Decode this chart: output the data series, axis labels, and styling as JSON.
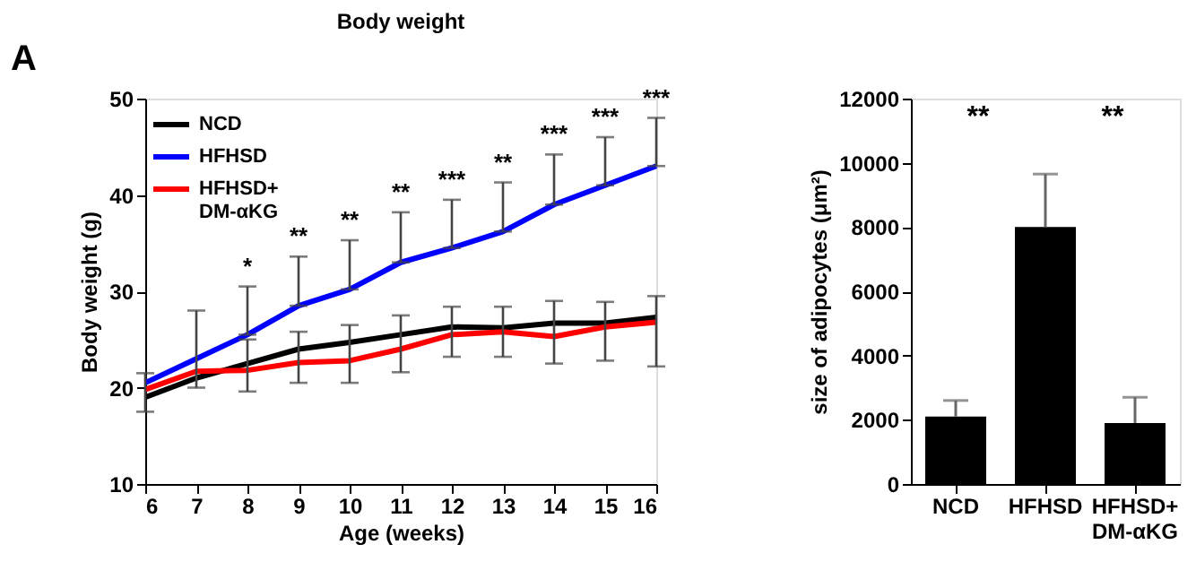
{
  "chart_data": [
    {
      "type": "line",
      "title": "Body weight",
      "xlabel": "Age (weeks)",
      "ylabel": "Body weight (g)",
      "x": [
        6,
        7,
        8,
        9,
        10,
        11,
        12,
        13,
        14,
        15,
        16
      ],
      "xlim": [
        6,
        16
      ],
      "xticks": [
        6,
        7,
        8,
        9,
        10,
        11,
        12,
        13,
        14,
        15,
        16
      ],
      "ylim": [
        10,
        50
      ],
      "yticks": [
        10,
        20,
        30,
        40,
        50
      ],
      "legend": "top left",
      "grid": false,
      "series": [
        {
          "name": "NCD",
          "color": "#000000",
          "values": [
            19,
            21,
            22.5,
            24,
            24.7,
            25.5,
            26.3,
            26.2,
            26.7,
            26.7,
            27.3
          ],
          "errors": [
            [
              17.5,
              21.5
            ],
            [
              20,
              28
            ],
            [
              19.6,
              25
            ],
            [
              20.5,
              25.8
            ],
            [
              20.5,
              26.5
            ],
            [
              21.6,
              27.5
            ],
            [
              23.2,
              28.4
            ],
            [
              23.2,
              28.4
            ],
            [
              22.5,
              29
            ],
            [
              22.8,
              28.9
            ],
            [
              22.2,
              29.5
            ]
          ]
        },
        {
          "name": "HFHSD",
          "color": "#0000ff",
          "values": [
            20.5,
            23,
            25.5,
            28.5,
            30.2,
            33,
            34.5,
            36.2,
            39,
            41,
            43
          ],
          "errors": [
            null,
            null,
            [
              25.5,
              30.5
            ],
            [
              28.5,
              33.6
            ],
            [
              30.2,
              35.3
            ],
            [
              33,
              38.2
            ],
            [
              34.5,
              39.5
            ],
            [
              36.2,
              41.3
            ],
            [
              39,
              44.2
            ],
            [
              41,
              46
            ],
            [
              43,
              48
            ]
          ]
        },
        {
          "name": "HFHSD+ DM-αKG",
          "color": "#ff0000",
          "values": [
            19.8,
            21.7,
            21.8,
            22.6,
            22.8,
            24,
            25.5,
            25.8,
            25.3,
            26.3,
            26.8
          ]
        }
      ],
      "annotations": [
        "A",
        "*",
        "**",
        "**",
        "**",
        "***",
        "**",
        "***",
        "***",
        "***"
      ]
    },
    {
      "type": "bar",
      "ylabel": "size of adipocytes (μm²)",
      "categories": [
        "NCD",
        "HFHSD",
        "HFHSD+ DM-αKG"
      ],
      "values": [
        2100,
        8000,
        1900
      ],
      "colors": [
        "#000000",
        "#000000",
        "#000000"
      ],
      "errors": [
        [
          2100,
          2600
        ],
        [
          8000,
          9650
        ],
        [
          1900,
          2700
        ]
      ],
      "ylim": [
        0,
        12000
      ],
      "yticks": [
        0,
        2000,
        4000,
        6000,
        8000,
        10000,
        12000
      ],
      "grid": false,
      "annotations": [
        "**",
        "**"
      ]
    }
  ]
}
